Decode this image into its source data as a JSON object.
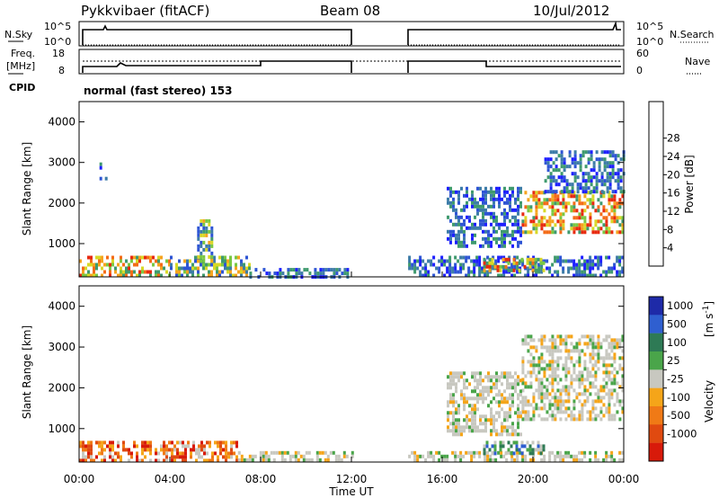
{
  "header": {
    "station": "Pykkvibaer (fitACF)",
    "beam": "Beam 08",
    "date": "10/Jul/2012"
  },
  "strips": {
    "nsky_label": "N.Sky",
    "nsky_ticks": [
      "10^5",
      "10^0"
    ],
    "nsearch_label": "N.Search",
    "nsearch_ticks": [
      "10^5",
      "10^0"
    ],
    "freq_label_1": "Freq.",
    "freq_label_2": "[MHz]",
    "freq_ticks": [
      "18",
      "8"
    ],
    "nave_label": "Nave",
    "nave_ticks": [
      "60",
      "0"
    ],
    "cpid_label": "CPID",
    "cpid_text": "normal (fast stereo) 153"
  },
  "axes": {
    "ylabel": "Slant Range [km]",
    "xlabel": "Time UT",
    "yticks": [
      "1000",
      "2000",
      "3000",
      "4000"
    ],
    "xticks": [
      "00:00",
      "04:00",
      "08:00",
      "12:00",
      "16:00",
      "20:00",
      "00:00"
    ]
  },
  "power_colorbar": {
    "label": "Power [dB]",
    "ticks": [
      "4",
      "8",
      "12",
      "16",
      "20",
      "24",
      "28"
    ]
  },
  "velocity_colorbar": {
    "label": "Velocity",
    "unit": "[m s",
    "unit_exp": "-1",
    "unit_end": "]",
    "ticks": [
      "1000",
      "500",
      "100",
      "25",
      "-25",
      "-100",
      "-500",
      "-1000"
    ]
  },
  "chart_data": {
    "type": "heatmap",
    "x_range_hours": [
      0,
      24
    ],
    "y_range_km": [
      180,
      4500
    ],
    "data_gap_hours": [
      12.0,
      14.5
    ],
    "power_colors": [
      "#1e20ff",
      "#2e55d4",
      "#3d7ca8",
      "#3f9a6e",
      "#7ac843",
      "#d8d826",
      "#f6a41f",
      "#f46c18",
      "#e82a10"
    ],
    "velocity_colors": [
      "#1e2aa8",
      "#2f5fd0",
      "#2e7a55",
      "#4aa54a",
      "#c8c8c0",
      "#f5a519",
      "#f07a16",
      "#e04a10",
      "#d81a0a"
    ],
    "power_echo_regions": [
      {
        "x0": 0.0,
        "x1": 4.0,
        "y0": 190,
        "y1": 700,
        "level": "high"
      },
      {
        "x0": 4.0,
        "x1": 7.5,
        "y0": 190,
        "y1": 700,
        "level": "medium"
      },
      {
        "x0": 7.5,
        "x1": 12.0,
        "y0": 190,
        "y1": 400,
        "level": "low"
      },
      {
        "x0": 5.2,
        "x1": 5.8,
        "y0": 600,
        "y1": 1600,
        "level": "medium"
      },
      {
        "x0": 0.9,
        "x1": 1.2,
        "y0": 2600,
        "y1": 3000,
        "level": "low"
      },
      {
        "x0": 14.5,
        "x1": 24.0,
        "y0": 190,
        "y1": 700,
        "level": "low"
      },
      {
        "x0": 17.8,
        "x1": 20.5,
        "y0": 350,
        "y1": 650,
        "level": "high"
      },
      {
        "x0": 19.5,
        "x1": 24.0,
        "y0": 1300,
        "y1": 2300,
        "level": "high"
      },
      {
        "x0": 16.2,
        "x1": 19.5,
        "y0": 900,
        "y1": 2400,
        "level": "low"
      },
      {
        "x0": 20.5,
        "x1": 24.0,
        "y0": 2300,
        "y1": 3300,
        "level": "low"
      }
    ],
    "velocity_echo_regions": [
      {
        "x0": 0.0,
        "x1": 7.0,
        "y0": 190,
        "y1": 700,
        "level": "negative"
      },
      {
        "x0": 7.0,
        "x1": 12.0,
        "y0": 190,
        "y1": 450,
        "level": "near-zero"
      },
      {
        "x0": 14.5,
        "x1": 24.0,
        "y0": 190,
        "y1": 450,
        "level": "near-zero"
      },
      {
        "x0": 17.8,
        "x1": 20.5,
        "y0": 350,
        "y1": 700,
        "level": "positive"
      },
      {
        "x0": 19.5,
        "x1": 24.0,
        "y0": 1200,
        "y1": 3300,
        "level": "near-zero"
      },
      {
        "x0": 16.2,
        "x1": 19.5,
        "y0": 900,
        "y1": 2400,
        "level": "near-zero"
      }
    ]
  }
}
